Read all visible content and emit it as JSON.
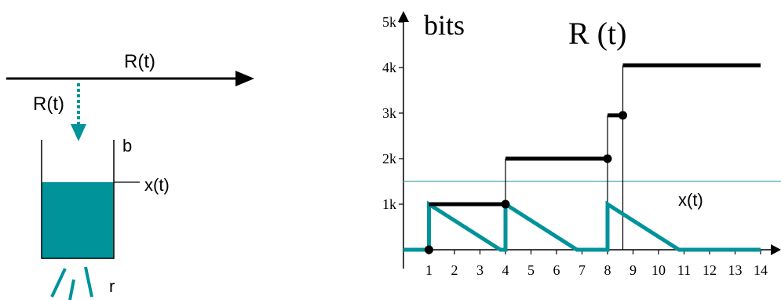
{
  "colors": {
    "teal": "#00939a",
    "black": "#000000",
    "threshold_line": "#4aa6a8"
  },
  "left_diagram": {
    "arrow_label": "R(t)",
    "drip_label": "R(t)",
    "bucket_label": "b",
    "level_label": "x(t)",
    "rate_label": "r",
    "fill_fraction": 0.55
  },
  "chart_data": {
    "type": "line",
    "ylabel": "bits",
    "title": "R (t)",
    "x_ticks": [
      1,
      2,
      3,
      4,
      5,
      6,
      7,
      8,
      9,
      10,
      11,
      12,
      13,
      14
    ],
    "y_ticks": [
      "1k",
      "2k",
      "3k",
      "4k",
      "5k"
    ],
    "xlim": [
      0,
      14.8
    ],
    "ylim": [
      0,
      5000
    ],
    "threshold": 1500,
    "series": [
      {
        "name": "R (t)",
        "color": "#000000",
        "steps": [
          {
            "x0": 1,
            "x1": 4,
            "y": 1000
          },
          {
            "x0": 4,
            "x1": 8,
            "y": 2000
          },
          {
            "x0": 8,
            "x1": 8.6,
            "y": 2950
          },
          {
            "x0": 8.6,
            "x1": 14,
            "y": 4050
          }
        ],
        "dots": [
          [
            1,
            0
          ],
          [
            4,
            1000
          ],
          [
            8,
            2000
          ],
          [
            8.6,
            2950
          ]
        ]
      },
      {
        "name": "x(t)",
        "color": "#00939a",
        "points": [
          [
            0,
            0
          ],
          [
            1,
            0
          ],
          [
            1,
            1000
          ],
          [
            3.8,
            0
          ],
          [
            4,
            0
          ],
          [
            4,
            1000
          ],
          [
            6.8,
            0
          ],
          [
            8,
            0
          ],
          [
            8,
            1000
          ],
          [
            10.8,
            0
          ],
          [
            14,
            0
          ]
        ]
      }
    ],
    "annotation": "x(t)"
  }
}
